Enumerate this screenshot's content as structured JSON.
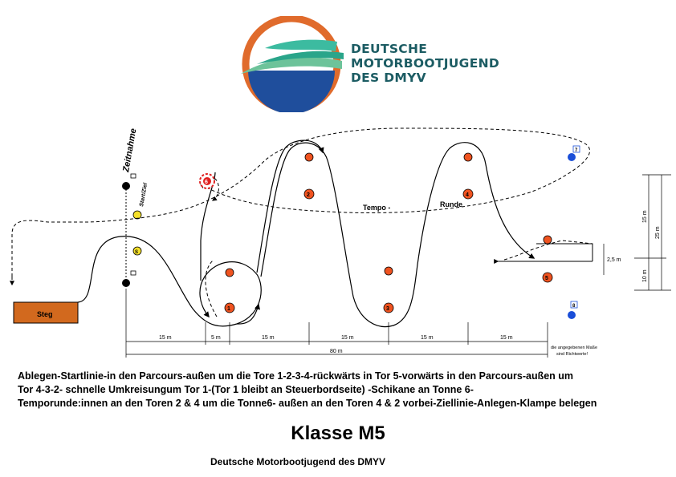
{
  "logo": {
    "org_lines": [
      "DEUTSCHE",
      "MOTORBOOTJUGEND",
      "DES DMYV"
    ],
    "colors": {
      "ring": "#e06b2c",
      "wave_teal": "#3cbba0",
      "wave_green": "#6dc39a",
      "water_blue": "#1f4e9c",
      "text": "#1c5c63"
    }
  },
  "diagram": {
    "labels": {
      "zeitnahme": "Zeitnahme",
      "start_ziel": "Start/Ziel",
      "steg": "Steg",
      "tempo": "Tempo -",
      "runde": "Runde"
    },
    "buoys": [
      {
        "id": "1",
        "color": "#ef5320"
      },
      {
        "id": "2",
        "color": "#ef5320"
      },
      {
        "id": "3",
        "color": "#ef5320"
      },
      {
        "id": "4",
        "color": "#ef5320"
      },
      {
        "id": "5",
        "color": "#ef5320"
      },
      {
        "id": "6",
        "color": "#e02020"
      },
      {
        "id": "7",
        "color": "#1a4ed8"
      },
      {
        "id": "8",
        "color": "#1a4ed8"
      },
      {
        "id": "S",
        "color": "#f5e02a"
      }
    ],
    "horizontal_dims": [
      "15 m",
      "5 m",
      "15 m",
      "15 m",
      "15 m",
      "15 m"
    ],
    "total_dim": "80 m",
    "vertical_dims": [
      "15 m",
      "25 m",
      "10 m",
      "2,5 m"
    ],
    "note_lines": [
      "die angegebenen Maße",
      "sind Richtwerte!"
    ],
    "colors": {
      "steg": "#d2691e",
      "line": "#000000"
    }
  },
  "description": [
    "Ablegen-Startlinie-in den Parcours-außen um die Tore 1-2-3-4-rückwärts in Tor 5-vorwärts in den Parcours-außen um",
    "Tor 4-3-2- schnelle Umkreisungum Tor 1-(Tor 1 bleibt an  Steuerbordseite) -Schikane an Tonne 6-",
    "Temporunde:innen an den Toren 2 & 4 um die Tonne6- außen an den Toren 4 & 2 vorbei-Ziellinie-Anlegen-Klampe belegen"
  ],
  "class_title": "Klasse M5",
  "footer": "Deutsche Motorbootjugend des DMYV"
}
